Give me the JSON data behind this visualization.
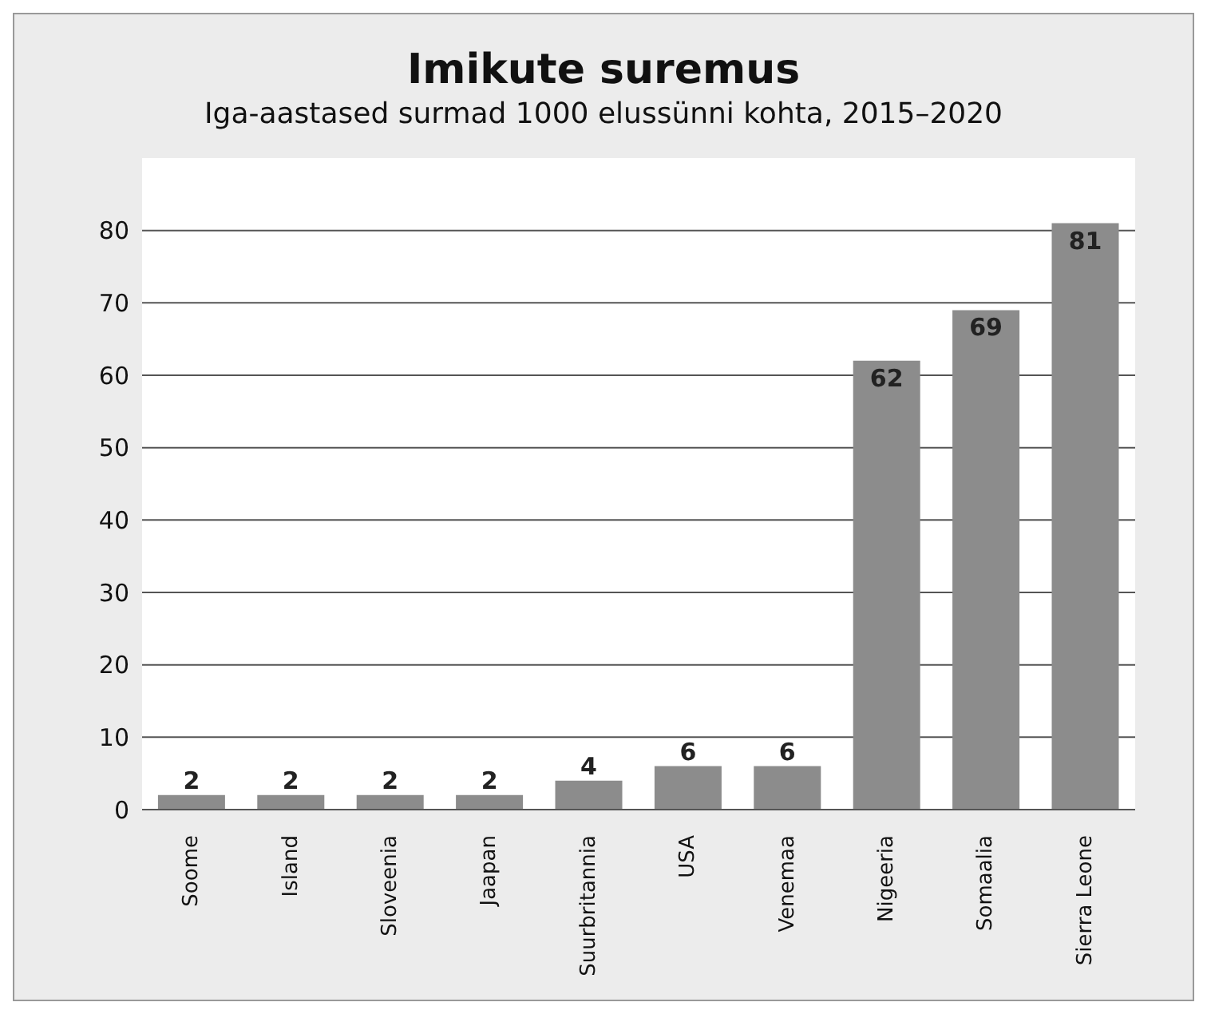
{
  "chart_data": {
    "type": "bar",
    "title": "Imikute suremus",
    "subtitle": "Iga-aastased surmad 1000 elussünni kohta, 2015–2020",
    "categories": [
      "Soome",
      "Island",
      "Sloveenia",
      "Jaapan",
      "Suurbritannia",
      "USA",
      "Venemaa",
      "Nigeeria",
      "Somaalia",
      "Sierra Leone"
    ],
    "values": [
      2,
      2,
      2,
      2,
      4,
      6,
      6,
      62,
      69,
      81
    ],
    "color": "#8c8c8c",
    "ylim": [
      0,
      90
    ],
    "yticks": [
      0,
      10,
      20,
      30,
      40,
      50,
      60,
      70,
      80
    ],
    "grid": "y",
    "data_labels": true
  }
}
